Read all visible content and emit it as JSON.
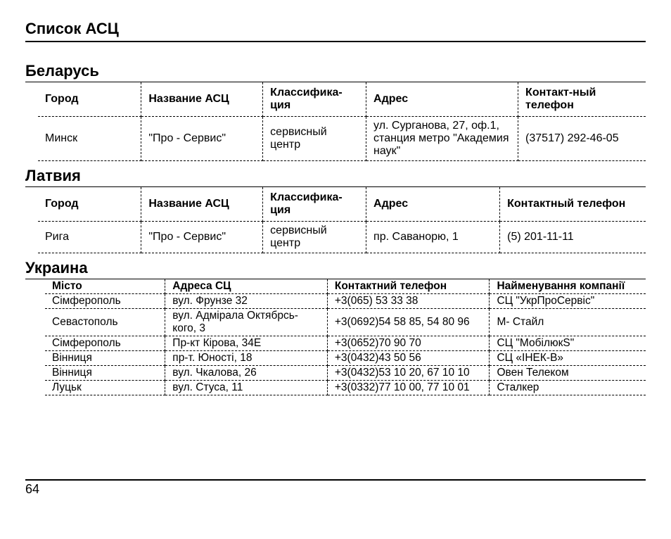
{
  "page": {
    "title": "Список АСЦ",
    "number": "64"
  },
  "colors": {
    "text": "#000000",
    "background": "#ffffff",
    "rule": "#000000"
  },
  "sections": [
    {
      "title": "Беларусь",
      "col_widths": [
        "17%",
        "20%",
        "17%",
        "25%",
        "21%"
      ],
      "columns": [
        "Город",
        "Название АСЦ",
        "Классифика-ция",
        "Адрес",
        "Контакт-ный телефон"
      ],
      "rows": [
        [
          "Минск",
          "\"Про - Сервис\"",
          "сервисный центр",
          "ул. Сурганова,  27, оф.1, станция метро \"Академия наук\"",
          "(37517) 292-46-05"
        ]
      ],
      "compact": false
    },
    {
      "title": "Латвия",
      "col_widths": [
        "17%",
        "20%",
        "17%",
        "22%",
        "24%"
      ],
      "columns": [
        "Город",
        "Название АСЦ",
        "Классифика-ция",
        "Адрес",
        "Контактный телефон"
      ],
      "rows": [
        [
          "Рига",
          "\"Про - Сервис\"",
          "сервисный центр",
          "пр. Саванорю, 1",
          "(5) 201-11-11"
        ]
      ],
      "compact": false
    },
    {
      "title": "Украина",
      "col_widths": [
        "20%",
        "27%",
        "27%",
        "26%"
      ],
      "columns": [
        "Місто",
        "Адреса СЦ",
        "Контактний телефон",
        "Найменування компанії"
      ],
      "rows": [
        [
          "Сімферополь",
          "вул. Фрунзе 32",
          "+3(065) 53 33 38",
          "СЦ \"УкрПроСервіс\""
        ],
        [
          "Севастополь",
          "вул. Адмірала Октябрсь-кого, 3",
          "+3(0692)54 58 85, 54 80 96",
          "М- Стайл"
        ],
        [
          "Сімферополь",
          "Пр-кт Кірова, 34Е",
          "+3(0652)70 90 70",
          "СЦ \"МобілюкS\""
        ],
        [
          "Вінниця",
          "пр-т. Юності, 18",
          "+3(0432)43 50 56",
          "СЦ «ІНЕК-В»"
        ],
        [
          "Вінниця",
          "вул. Чкалова, 26",
          "+3(0432)53 10 20, 67 10 10",
          "Овен Телеком"
        ],
        [
          "Луцьк",
          "вул. Стуса, 11",
          "+3(0332)77 10 00, 77 10 01",
          "Сталкер"
        ]
      ],
      "compact": true
    }
  ]
}
